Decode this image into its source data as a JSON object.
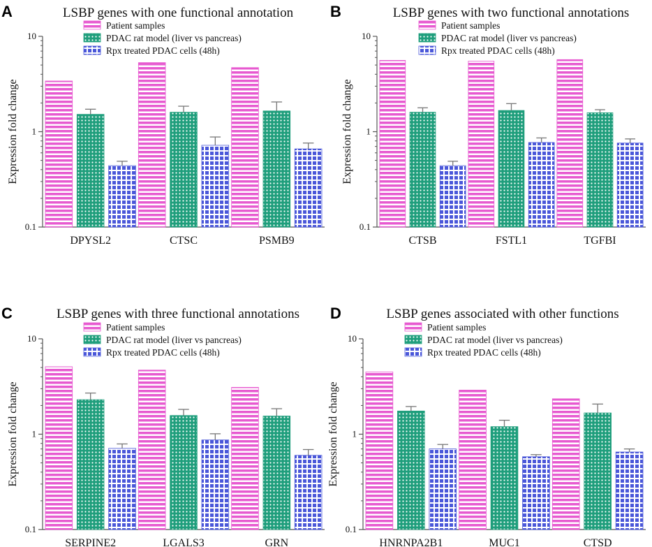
{
  "colors": {
    "patient": "#e75ad0",
    "rat": "#1f9e7c",
    "rpx": "#4a57d9",
    "axis": "#555555",
    "error": "#777777"
  },
  "chart_data": [
    {
      "panel": "A",
      "type": "bar",
      "title": "LSBP genes with one  functional annotation",
      "ylabel": "Expression fold change",
      "yscale": "log",
      "ylim": [
        0.1,
        10
      ],
      "yticks": [
        "0.1",
        "1",
        "10"
      ],
      "categories": [
        "DPYSL2",
        "CTSC",
        "PSMB9"
      ],
      "series": [
        {
          "name": "Patient samples",
          "values": [
            3.4,
            5.3,
            4.7
          ],
          "errors": [
            0,
            0,
            0
          ]
        },
        {
          "name": "PDAC rat model (liver vs pancreas)",
          "values": [
            1.52,
            1.6,
            1.65
          ],
          "errors": [
            0.2,
            0.25,
            0.4
          ]
        },
        {
          "name": "Rpx treated PDAC cells (48h)",
          "values": [
            0.44,
            0.72,
            0.66
          ],
          "errors": [
            0.05,
            0.16,
            0.1
          ]
        }
      ]
    },
    {
      "panel": "B",
      "type": "bar",
      "title": "LSBP genes with two functional annotations",
      "ylabel": "Expression fold change",
      "yscale": "log",
      "ylim": [
        0.1,
        10
      ],
      "yticks": [
        "0.1",
        "1",
        "10"
      ],
      "categories": [
        "CTSB",
        "FSTL1",
        "TGFBI"
      ],
      "series": [
        {
          "name": "Patient samples",
          "values": [
            5.6,
            5.5,
            5.7
          ],
          "errors": [
            0,
            0,
            0
          ]
        },
        {
          "name": "PDAC rat model (liver vs pancreas)",
          "values": [
            1.6,
            1.67,
            1.58
          ],
          "errors": [
            0.18,
            0.3,
            0.12
          ]
        },
        {
          "name": "Rpx treated PDAC cells (48h)",
          "values": [
            0.44,
            0.77,
            0.76
          ],
          "errors": [
            0.05,
            0.09,
            0.08
          ]
        }
      ]
    },
    {
      "panel": "C",
      "type": "bar",
      "title": "LSBP genes with three functional annotations",
      "ylabel": "Expression fold change",
      "yscale": "log",
      "ylim": [
        0.1,
        10
      ],
      "yticks": [
        "0.1",
        "1",
        "10"
      ],
      "categories": [
        "SERPINE2",
        "LGALS3",
        "GRN"
      ],
      "series": [
        {
          "name": "Patient samples",
          "values": [
            5.1,
            4.7,
            3.1
          ],
          "errors": [
            0,
            0,
            0
          ]
        },
        {
          "name": "PDAC rat model (liver vs pancreas)",
          "values": [
            2.3,
            1.57,
            1.55
          ],
          "errors": [
            0.4,
            0.25,
            0.3
          ]
        },
        {
          "name": "Rpx treated PDAC cells (48h)",
          "values": [
            0.71,
            0.87,
            0.6
          ],
          "errors": [
            0.08,
            0.14,
            0.09
          ]
        }
      ]
    },
    {
      "panel": "D",
      "type": "bar",
      "title": "LSBP genes associated with other functions",
      "ylabel": "Expression fold change",
      "yscale": "log",
      "ylim": [
        0.1,
        10
      ],
      "yticks": [
        "0.1",
        "1",
        "10"
      ],
      "categories": [
        "HNRNPA2B1",
        "MUC1",
        "CTSD"
      ],
      "series": [
        {
          "name": "Patient samples",
          "values": [
            4.5,
            2.9,
            2.35
          ],
          "errors": [
            0,
            0,
            0
          ]
        },
        {
          "name": "PDAC rat model (liver vs pancreas)",
          "values": [
            1.75,
            1.2,
            1.67
          ],
          "errors": [
            0.2,
            0.2,
            0.4
          ]
        },
        {
          "name": "Rpx treated PDAC cells (48h)",
          "values": [
            0.7,
            0.58,
            0.65
          ],
          "errors": [
            0.08,
            0.03,
            0.05
          ]
        }
      ]
    }
  ]
}
